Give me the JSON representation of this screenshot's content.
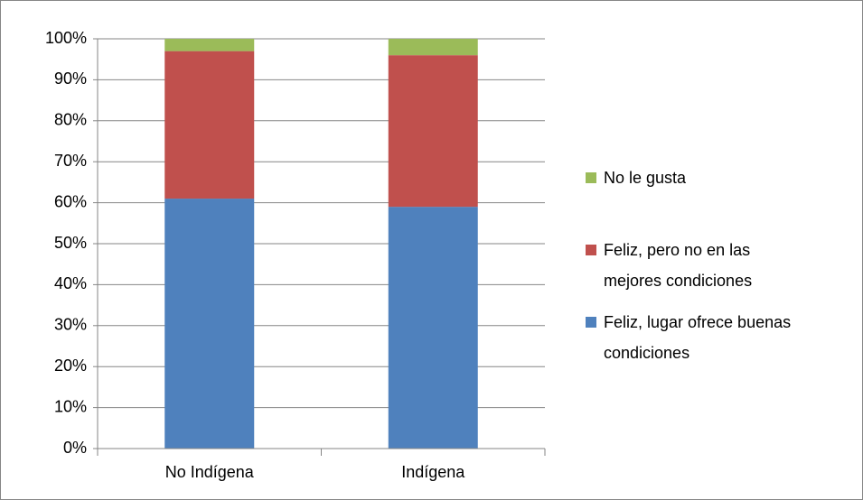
{
  "chart_data": {
    "type": "stacked_bar",
    "categories": [
      "No Indígena",
      "Indígena"
    ],
    "series": [
      {
        "name": "Feliz, lugar ofrece buenas condiciones",
        "color": "#4f81bd",
        "values": [
          61,
          59
        ]
      },
      {
        "name": "Feliz, pero no en las mejores condiciones",
        "color": "#c0504d",
        "values": [
          36,
          37
        ]
      },
      {
        "name": "No le gusta",
        "color": "#9bbb59",
        "values": [
          3,
          4
        ]
      }
    ],
    "ylim": [
      0,
      100
    ],
    "yticks": [
      {
        "value": 0,
        "label": "0%"
      },
      {
        "value": 10,
        "label": "10%"
      },
      {
        "value": 20,
        "label": "20%"
      },
      {
        "value": 30,
        "label": "30%"
      },
      {
        "value": 40,
        "label": "40%"
      },
      {
        "value": 50,
        "label": "50%"
      },
      {
        "value": 60,
        "label": "60%"
      },
      {
        "value": 70,
        "label": "70%"
      },
      {
        "value": 80,
        "label": "80%"
      },
      {
        "value": 90,
        "label": "90%"
      },
      {
        "value": 100,
        "label": "100%"
      }
    ],
    "grid": true,
    "legend": "right"
  }
}
